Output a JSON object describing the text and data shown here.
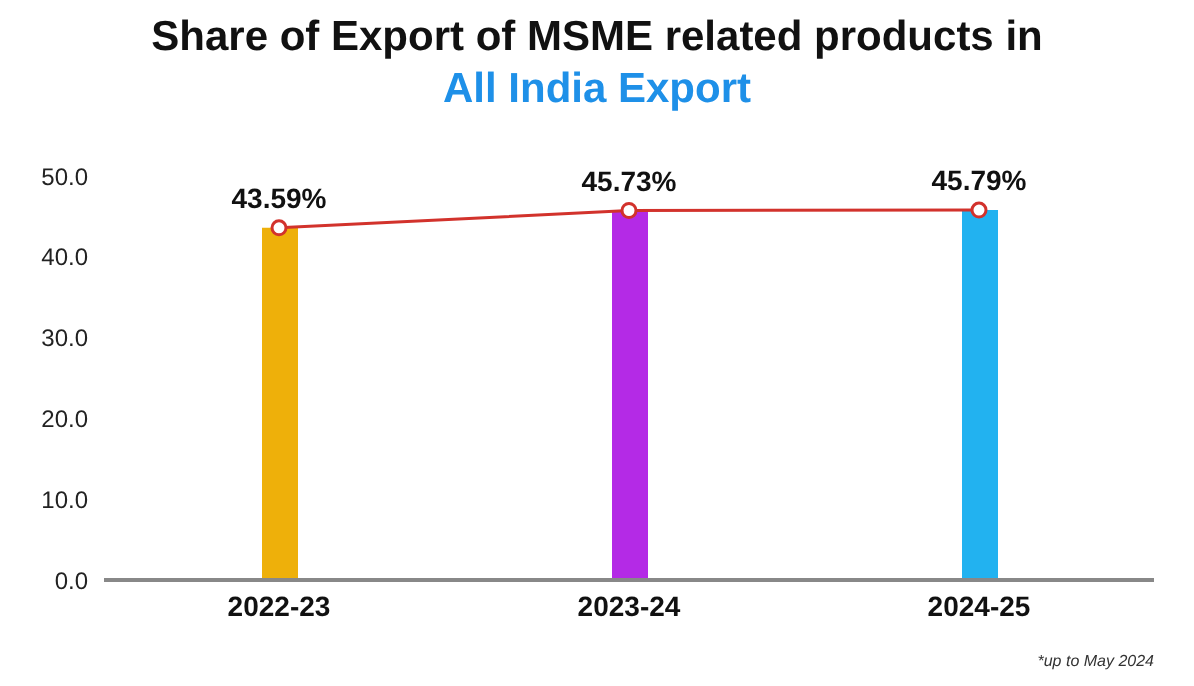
{
  "chart_data": {
    "type": "bar",
    "title": "Share of Export of MSME related products in",
    "subtitle": "All India Export",
    "categories": [
      "2022-23",
      "2023-24",
      "2024-25"
    ],
    "series": [
      {
        "colors": [
          "#eeb00a",
          "#b42ae6",
          "#22b2f0"
        ],
        "values": [
          43.59,
          45.73,
          45.79
        ]
      },
      {
        "type": "line",
        "color": "#d2322c",
        "values": [
          43.59,
          45.73,
          45.79
        ],
        "value_labels": [
          "43.59%",
          "45.73%",
          "45.79%"
        ]
      }
    ],
    "ylim": [
      0,
      50
    ],
    "yticks": [
      {
        "value": 0,
        "label": "0.0"
      },
      {
        "value": 10,
        "label": "10.0"
      },
      {
        "value": 20,
        "label": "20.0"
      },
      {
        "value": 30,
        "label": "30.0"
      },
      {
        "value": 40,
        "label": "40.0"
      },
      {
        "value": 50,
        "label": "50.0"
      }
    ],
    "grid": false,
    "marker": "circle",
    "line_style": "solid",
    "annotations": [
      "*up to May 2024"
    ]
  }
}
